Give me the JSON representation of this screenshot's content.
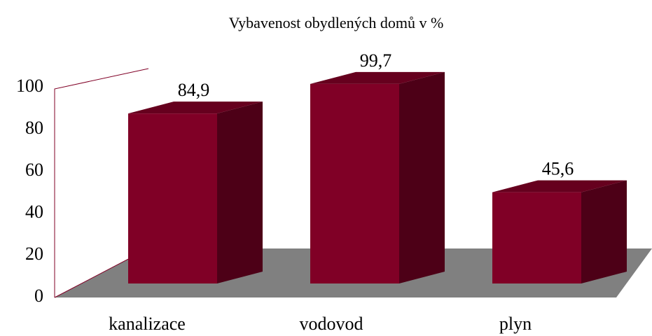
{
  "chart_data": {
    "type": "bar3d",
    "title": "Vybavenost obydlených domů v %",
    "categories": [
      "kanalizace",
      "vodovod",
      "plyn"
    ],
    "values": [
      84.9,
      99.7,
      45.6
    ],
    "value_labels": [
      "84,9",
      "99,7",
      "45,6"
    ],
    "color": "#800026",
    "ylim": [
      0,
      100
    ],
    "yticks": [
      0,
      20,
      40,
      60,
      80,
      100
    ]
  }
}
